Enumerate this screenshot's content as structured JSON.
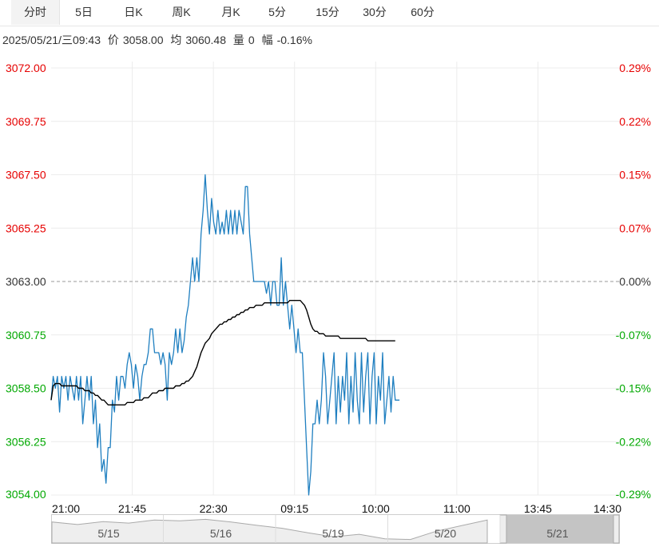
{
  "tabs": [
    "分时",
    "5日",
    "日K",
    "周K",
    "月K",
    "5分",
    "15分",
    "30分",
    "60分"
  ],
  "info": {
    "datetime": "2025/05/21/三09:43",
    "price_label": "价",
    "price": "3058.00",
    "avg_label": "均",
    "avg": "3060.48",
    "vol_label": "量",
    "vol": "0",
    "chg_label": "幅",
    "chg": "-0.16%"
  },
  "colors": {
    "up": "#e60000",
    "down": "#00a800",
    "price_line": "#1f7fc0",
    "avg_line": "#000000",
    "grid": "#ececec"
  },
  "chart_data": {
    "type": "line",
    "y_ticks": [
      "3072.00",
      "3069.75",
      "3067.50",
      "3065.25",
      "3063.00",
      "3060.75",
      "3058.50",
      "3056.25",
      "3054.00"
    ],
    "pct_ticks": [
      "0.29%",
      "0.22%",
      "0.15%",
      "0.07%",
      "0.00%",
      "-0.07%",
      "-0.15%",
      "-0.22%",
      "-0.29%"
    ],
    "x_ticks": [
      "21:00",
      "21:45",
      "22:30",
      "09:15",
      "10:00",
      "11:00",
      "13:45",
      "14:30"
    ],
    "ylim": [
      3054.0,
      3072.0
    ],
    "prev_close": 3063.0,
    "series": [
      {
        "values": [
          3058.0,
          3059.0,
          3058.5,
          3059.0,
          3057.5,
          3059.0,
          3058.5,
          3059.0,
          3058.0,
          3059.0,
          3058.5,
          3058.0,
          3059.0,
          3058.0,
          3059.0,
          3057.0,
          3058.0,
          3059.0,
          3058.0,
          3059.0,
          3057.0,
          3058.0,
          3056.0,
          3057.0,
          3055.0,
          3055.5,
          3054.5,
          3056.0,
          3056.0,
          3058.0,
          3057.5,
          3059.0,
          3058.0,
          3059.0,
          3059.0,
          3058.5,
          3059.5,
          3060.0,
          3059.5,
          3058.5,
          3059.5,
          3059.0,
          3058.0,
          3059.0,
          3059.5,
          3059.5,
          3060.0,
          3061.0,
          3061.0,
          3060.0,
          3060.0,
          3060.0,
          3059.5,
          3060.0,
          3059.5,
          3058.0,
          3060.0,
          3059.5,
          3060.0,
          3061.0,
          3060.0,
          3061.0,
          3060.0,
          3060.5,
          3061.5,
          3062.0,
          3063.0,
          3064.0,
          3063.0,
          3064.0,
          3063.0,
          3065.0,
          3066.0,
          3067.5,
          3066.0,
          3065.0,
          3066.5,
          3065.5,
          3065.0,
          3066.0,
          3065.0,
          3065.5,
          3065.0,
          3066.0,
          3065.0,
          3066.0,
          3065.0,
          3066.0,
          3065.0,
          3066.0,
          3065.5,
          3065.0,
          3067.0,
          3067.0,
          3065.0,
          3064.0,
          3063.0,
          3063.0,
          3063.0,
          3063.0,
          3063.0,
          3063.0,
          3062.5,
          3063.0,
          3062.0,
          3063.0,
          3063.0,
          3062.0,
          3062.0,
          3064.0,
          3062.0,
          3063.0,
          3062.0,
          3061.0,
          3062.0,
          3061.0,
          3060.0,
          3061.0,
          3060.0,
          3060.0,
          3058.0,
          3056.0,
          3054.0,
          3055.0,
          3057.0,
          3057.0,
          3058.0,
          3057.0,
          3058.0,
          3060.0,
          3059.0,
          3057.0,
          3058.0,
          3059.0,
          3060.0,
          3057.0,
          3059.0,
          3057.5,
          3059.0,
          3058.0,
          3060.0,
          3057.0,
          3059.0,
          3057.5,
          3060.0,
          3058.0,
          3057.0,
          3060.0,
          3057.5,
          3059.0,
          3060.0,
          3057.0,
          3059.0,
          3060.0,
          3057.0,
          3059.0,
          3058.0,
          3060.0,
          3057.0,
          3058.0,
          3059.0,
          3057.5,
          3059.0,
          3058.0,
          3058.0,
          3058.0
        ],
        "color": "#1f7fc0"
      },
      {
        "values": [
          3058.0,
          3058.6,
          3058.7,
          3058.7,
          3058.7,
          3058.6,
          3058.6,
          3058.6,
          3058.6,
          3058.6,
          3058.6,
          3058.6,
          3058.6,
          3058.5,
          3058.5,
          3058.5,
          3058.4,
          3058.4,
          3058.4,
          3058.3,
          3058.3,
          3058.2,
          3058.2,
          3058.1,
          3058.0,
          3058.0,
          3057.9,
          3057.8,
          3057.8,
          3057.8,
          3057.8,
          3057.8,
          3057.8,
          3057.8,
          3057.8,
          3057.8,
          3057.9,
          3057.9,
          3057.9,
          3057.9,
          3058.0,
          3058.0,
          3058.0,
          3058.0,
          3058.1,
          3058.1,
          3058.1,
          3058.2,
          3058.3,
          3058.3,
          3058.3,
          3058.4,
          3058.4,
          3058.4,
          3058.5,
          3058.5,
          3058.5,
          3058.5,
          3058.5,
          3058.6,
          3058.6,
          3058.6,
          3058.7,
          3058.7,
          3058.8,
          3058.8,
          3058.9,
          3059.0,
          3059.2,
          3059.4,
          3059.7,
          3060.0,
          3060.2,
          3060.4,
          3060.5,
          3060.6,
          3060.8,
          3060.9,
          3061.0,
          3061.1,
          3061.2,
          3061.2,
          3061.3,
          3061.3,
          3061.4,
          3061.4,
          3061.5,
          3061.5,
          3061.6,
          3061.6,
          3061.7,
          3061.7,
          3061.8,
          3061.8,
          3061.9,
          3061.9,
          3061.9,
          3062.0,
          3062.0,
          3062.0,
          3062.0,
          3062.1,
          3062.1,
          3062.1,
          3062.1,
          3062.1,
          3062.1,
          3062.1,
          3062.1,
          3062.1,
          3062.1,
          3062.1,
          3062.1,
          3062.2,
          3062.2,
          3062.2,
          3062.2,
          3062.2,
          3062.2,
          3062.1,
          3062.0,
          3061.8,
          3061.5,
          3061.2,
          3061.0,
          3060.9,
          3060.9,
          3060.8,
          3060.8,
          3060.8,
          3060.7,
          3060.7,
          3060.7,
          3060.7,
          3060.7,
          3060.7,
          3060.7,
          3060.6,
          3060.6,
          3060.6,
          3060.6,
          3060.6,
          3060.6,
          3060.6,
          3060.6,
          3060.6,
          3060.6,
          3060.6,
          3060.6,
          3060.6,
          3060.5,
          3060.5,
          3060.5,
          3060.5,
          3060.5,
          3060.5,
          3060.5,
          3060.5,
          3060.5,
          3060.5,
          3060.5,
          3060.5,
          3060.5,
          3060.5
        ],
        "color": "#000000"
      }
    ],
    "total_points": 270,
    "grid": true
  },
  "navigator": {
    "labels": [
      "5/15",
      "5/16",
      "5/19",
      "5/20",
      "5/21"
    ],
    "overview": [
      3057.5,
      3056.8,
      3057.6,
      3057.2,
      3058.0,
      3057.8,
      3058.2,
      3057.5,
      3056.6,
      3055.8,
      3054.6,
      3053.5,
      3054.2,
      3053.0,
      3052.8,
      3055.0,
      3056.5,
      3058.0
    ]
  }
}
